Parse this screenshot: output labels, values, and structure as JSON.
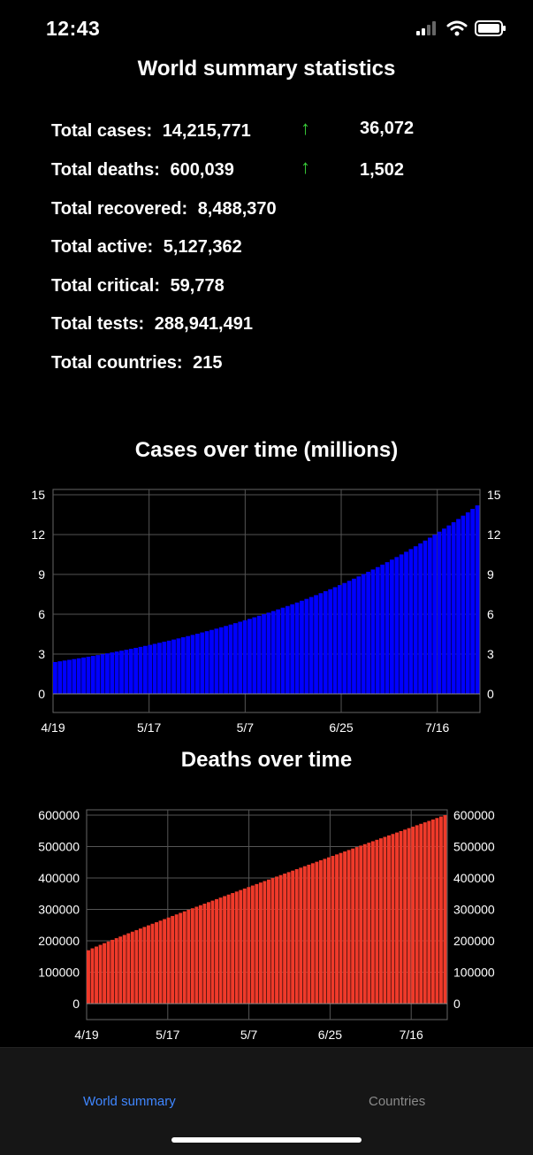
{
  "status": {
    "time": "12:43"
  },
  "title": "World summary statistics",
  "stats": [
    {
      "label": "Total cases:",
      "value": "14,215,771",
      "delta": "36,072",
      "arrow": "↑"
    },
    {
      "label": "Total deaths:",
      "value": "600,039",
      "delta": "1,502",
      "arrow": "↑"
    },
    {
      "label": "Total recovered:",
      "value": "8,488,370"
    },
    {
      "label": "Total active:",
      "value": "5,127,362"
    },
    {
      "label": "Total critical:",
      "value": "59,778"
    },
    {
      "label": "Total tests:",
      "value": "288,941,491"
    },
    {
      "label": "Total countries:",
      "value": "215"
    }
  ],
  "colors": {
    "cases_bar": "#0000ff",
    "deaths_bar": "#ef3a2a",
    "up_arrow": "#3ad13a",
    "tab_active": "#3f86ff",
    "tab_inactive": "#8a8a8a"
  },
  "chart_data": [
    {
      "type": "bar",
      "title": "Cases over time (millions)",
      "x_tick_labels": [
        "4/19",
        "5/17",
        "5/7",
        "6/25",
        "7/16"
      ],
      "y_ticks": [
        0,
        3,
        6,
        9,
        12,
        15
      ],
      "ylim": [
        0,
        15
      ],
      "start_value": 2.4,
      "end_value": 14.2,
      "bar_count": 90,
      "grid": true,
      "axes_right": true
    },
    {
      "type": "bar",
      "title": "Deaths over time",
      "x_tick_labels": [
        "4/19",
        "5/17",
        "5/7",
        "6/25",
        "7/16"
      ],
      "y_ticks": [
        0,
        100000,
        200000,
        300000,
        400000,
        500000,
        600000
      ],
      "ylim": [
        0,
        600000
      ],
      "start_value": 170000,
      "end_value": 600039,
      "bar_count": 90,
      "grid": true,
      "axes_right": true
    }
  ],
  "tabs": [
    {
      "label": "World summary",
      "active": true
    },
    {
      "label": "Countries",
      "active": false
    }
  ]
}
